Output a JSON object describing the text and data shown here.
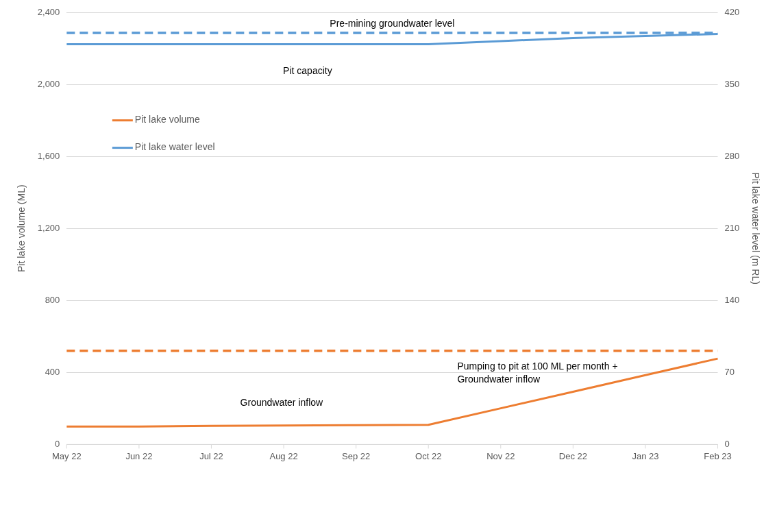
{
  "chart_data": {
    "type": "line",
    "xlabel": null,
    "ylabel": "Pit lake volume (ML)",
    "y2label": "Pit lake water level (m RL)",
    "categories": [
      "May 22",
      "Jun 22",
      "Jul 22",
      "Aug 22",
      "Sep 22",
      "Oct 22",
      "Nov 22",
      "Dec 22",
      "Jan 23",
      "Feb 23"
    ],
    "series": [
      {
        "name": "Pit lake volume",
        "color": "#ed7d31",
        "values": [
          100,
          100,
          103,
          105,
          107,
          109,
          201,
          293,
          385,
          477
        ]
      },
      {
        "name": "Pit lake water level",
        "color": "#5b9bd5",
        "axis": "y2",
        "values": [
          389,
          389,
          389,
          389,
          389,
          389,
          392,
          395,
          397,
          399
        ]
      }
    ],
    "ylim": [
      0,
      2400
    ],
    "yticks": [
      {
        "value": 0,
        "label": "0"
      },
      {
        "value": 400,
        "label": "400"
      },
      {
        "value": 800,
        "label": "800"
      },
      {
        "value": 1200,
        "label": "1,200"
      },
      {
        "value": 1600,
        "label": "1,600"
      },
      {
        "value": 2000,
        "label": "2,000"
      },
      {
        "value": 2400,
        "label": "2,400"
      }
    ],
    "y2lim": [
      0,
      420
    ],
    "y2ticks": [
      0,
      70,
      140,
      210,
      280,
      350,
      420
    ],
    "ref_lines": [
      {
        "axis": "y",
        "value": 520,
        "color": "#ed7d31",
        "line_style": "dashed"
      },
      {
        "axis": "y2",
        "value": 400,
        "label": "Pre-mining groundwater level",
        "color": "#5b9bd5",
        "line_style": "dashed"
      }
    ],
    "annotations": [
      "Pit capacity",
      "Groundwater inflow",
      "Pumping to pit at 100 ML per month + Groundwater inflow"
    ],
    "grid": "y",
    "legend": "top left",
    "marker": "none",
    "line_style": "solid"
  }
}
